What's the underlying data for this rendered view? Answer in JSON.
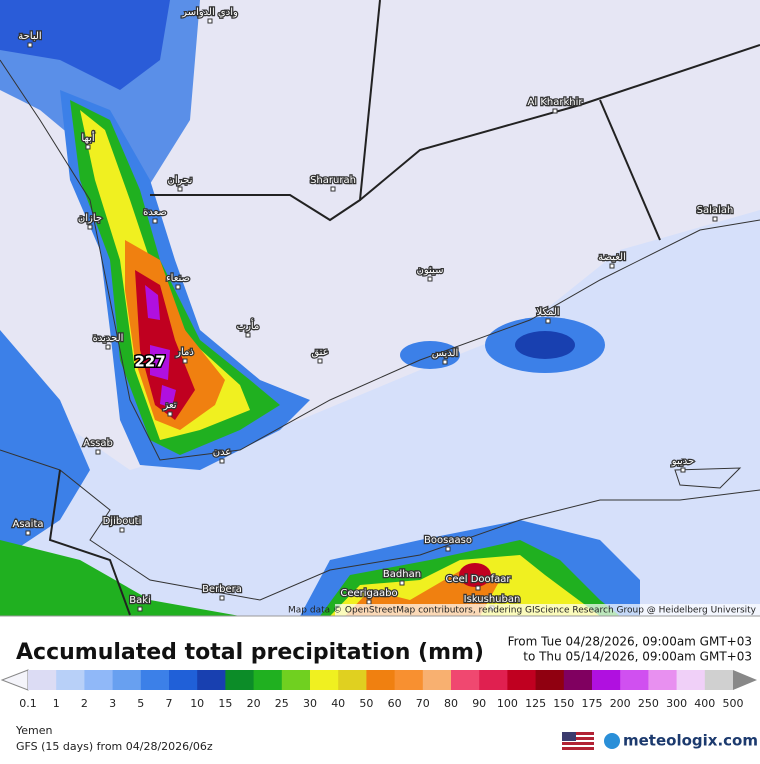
{
  "map": {
    "places": [
      "الباحة",
      "وادي الدواسر",
      "أبها",
      "نجران",
      "جازان",
      "صعدة",
      "صنعاء",
      "الحديدة",
      "ذمار",
      "تعز",
      "عدن",
      "مأرب",
      "عتق",
      "Sharurah",
      "Al Kharkhir",
      "Salalah",
      "الغيضة",
      "سيئون",
      "المكلا",
      "الديس",
      "حديبو",
      "Assab",
      "Asaita",
      "Djibouti",
      "Boosaaso",
      "Badhan",
      "Ceel Doofaar",
      "Ceerigaabo",
      "Iskushuban",
      "Berbera",
      "Baki"
    ],
    "max_label": "227",
    "attribution": "Map data © OpenStreetMap contributors, rendering GIScience Research Group @ Heidelberg University"
  },
  "header": {
    "title": "Accumulated total precipitation (mm)",
    "from": "From Tue 04/28/2026, 09:00am GMT+03",
    "to": "to Thu 05/14/2026, 09:00am GMT+03"
  },
  "legend": {
    "labels": [
      0.1,
      1,
      2,
      3,
      5,
      7,
      10,
      15,
      20,
      25,
      30,
      40,
      50,
      60,
      70,
      80,
      90,
      100,
      125,
      150,
      175,
      200,
      250,
      300,
      400,
      500
    ],
    "colors": [
      "#dcdcf4",
      "#b8d0f8",
      "#90b8f8",
      "#68a0f0",
      "#3c80e8",
      "#2060d8",
      "#1840b0",
      "#0c8c28",
      "#20b020",
      "#70d020",
      "#f0f020",
      "#e0d020",
      "#f08010",
      "#f89030",
      "#f8b070",
      "#f04870",
      "#e02050",
      "#c00020",
      "#900010",
      "#800060",
      "#b010e0",
      "#d050f0",
      "#e890f0",
      "#f0d0f8",
      "#d0d0d0"
    ]
  },
  "footer": {
    "region": "Yemen",
    "model": "GFS (15 days) from  04/28/2026/06z",
    "brand": "meteologix.com"
  }
}
